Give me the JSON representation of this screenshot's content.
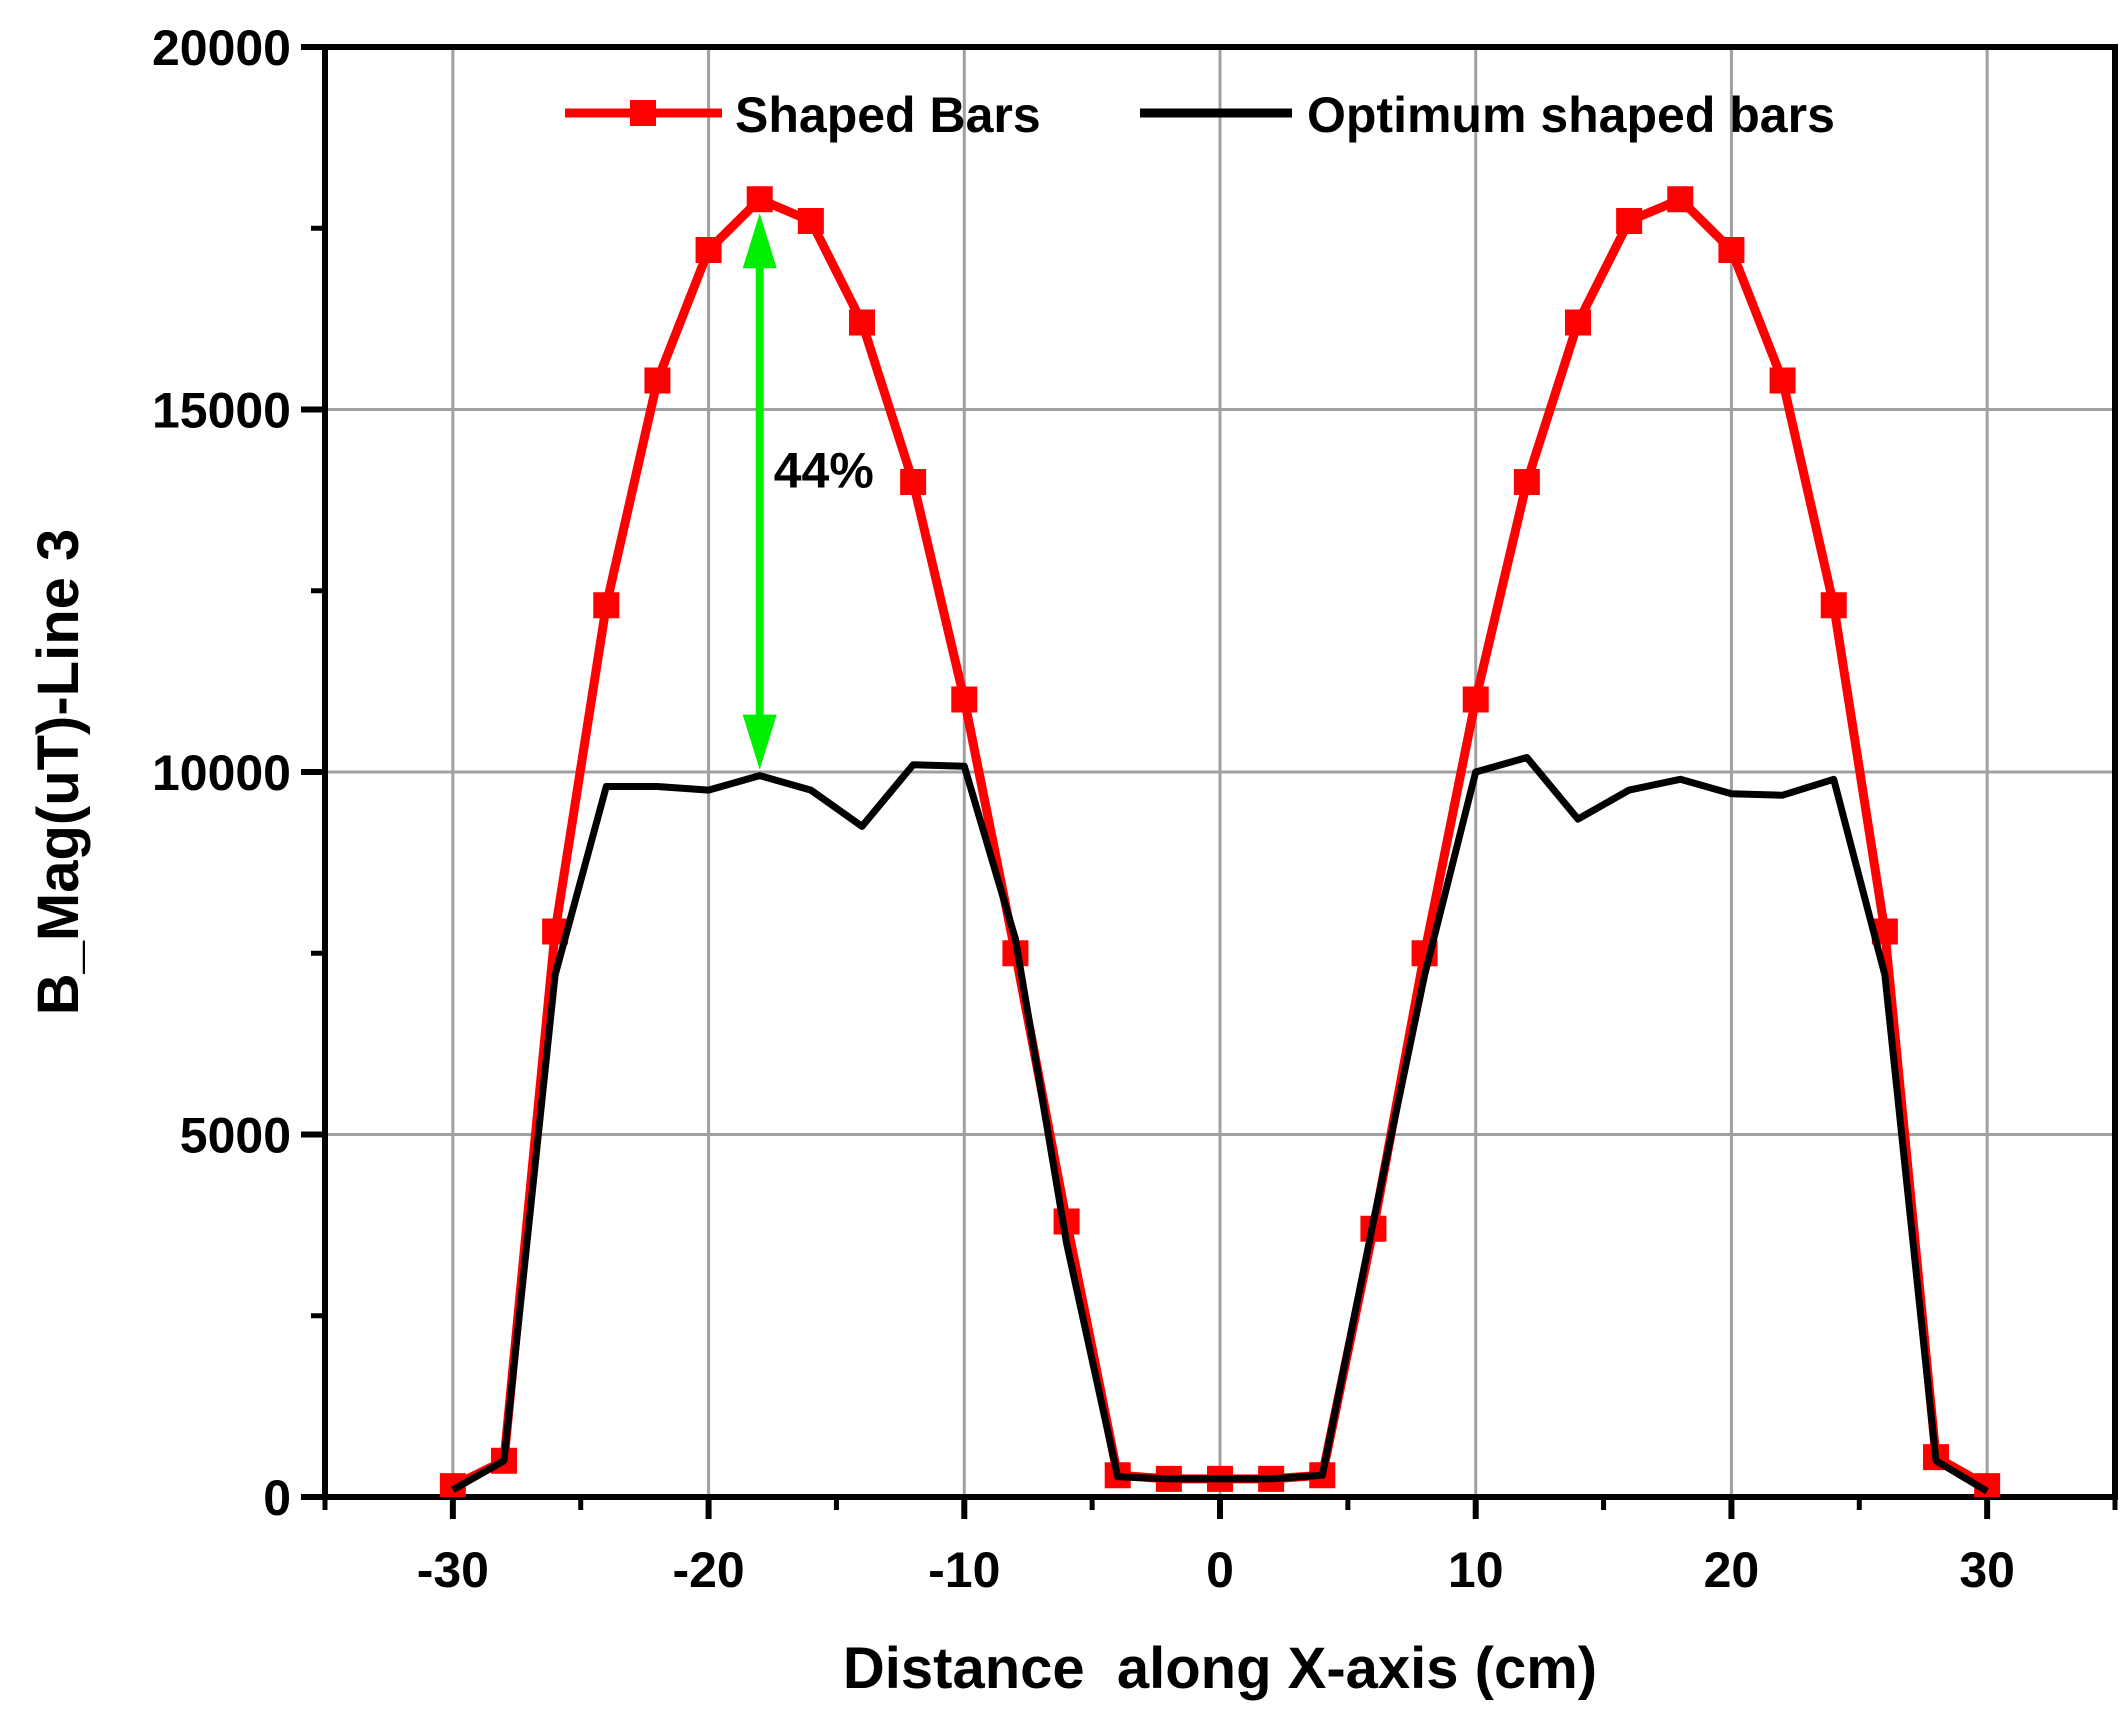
{
  "chart_data": {
    "type": "line",
    "title": "",
    "xlabel": "Distance  along X-axis (cm)",
    "ylabel": "B_Mag(uT)-Line 3",
    "xlim": [
      -35,
      35
    ],
    "ylim": [
      0,
      20000
    ],
    "xticks": [
      -30,
      -20,
      -10,
      0,
      10,
      20,
      30
    ],
    "xtick_labels": [
      "-30",
      "-20",
      "-10",
      "0",
      "10",
      "20",
      "30"
    ],
    "yticks": [
      0,
      5000,
      10000,
      15000,
      20000
    ],
    "ytick_labels": [
      "0",
      "5000",
      "10000",
      "15000",
      "20000"
    ],
    "grid": true,
    "legend_position": "top",
    "series": [
      {
        "name": "Shaped Bars",
        "color": "#ff0000",
        "marker": "square",
        "x": [
          -30,
          -28,
          -26,
          -24,
          -22,
          -20,
          -18,
          -16,
          -14,
          -12,
          -10,
          -8,
          -6,
          -4,
          -2,
          0,
          2,
          4,
          6,
          8,
          10,
          12,
          14,
          16,
          18,
          20,
          22,
          24,
          26,
          28,
          30
        ],
        "y": [
          150,
          500,
          7800,
          12300,
          15400,
          17200,
          17900,
          17600,
          16200,
          14000,
          11000,
          7500,
          3800,
          300,
          250,
          250,
          250,
          300,
          3700,
          7500,
          11000,
          14000,
          16200,
          17600,
          17900,
          17200,
          15400,
          12300,
          7800,
          550,
          150
        ]
      },
      {
        "name": "Optimum shaped bars",
        "color": "#000000",
        "marker": "none",
        "x": [
          -30,
          -28,
          -26,
          -24,
          -22,
          -20,
          -18,
          -16,
          -14,
          -12,
          -10,
          -8,
          -6,
          -4,
          -2,
          0,
          2,
          4,
          6,
          8,
          10,
          12,
          14,
          16,
          18,
          20,
          22,
          24,
          26,
          28,
          30
        ],
        "y": [
          100,
          500,
          7200,
          9800,
          9800,
          9750,
          9950,
          9750,
          9250,
          10100,
          10080,
          7700,
          3500,
          280,
          250,
          250,
          250,
          300,
          3800,
          7200,
          10000,
          10200,
          9350,
          9750,
          9900,
          9700,
          9680,
          9900,
          7200,
          500,
          80
        ]
      }
    ],
    "annotations": [
      {
        "text": "44%",
        "type": "double-arrow",
        "x": -18,
        "y_from": 9950,
        "y_to": 17900,
        "color": "#00ee00"
      }
    ]
  }
}
